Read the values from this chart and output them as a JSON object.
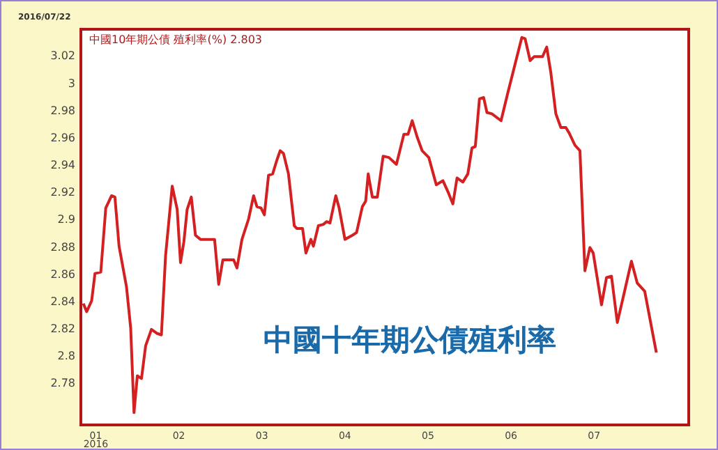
{
  "chart_data": {
    "type": "line",
    "title": "中國10年期公債 殖利率(%) 2.803",
    "annotations": [
      "2016/07/22",
      "2016",
      "中國十年期公債殖利率"
    ],
    "x": [
      0.85,
      0.89,
      0.95,
      0.99,
      1.06,
      1.12,
      1.19,
      1.23,
      1.28,
      1.37,
      1.42,
      1.46,
      1.5,
      1.55,
      1.6,
      1.67,
      1.74,
      1.79,
      1.84,
      1.92,
      1.98,
      2.02,
      2.06,
      2.1,
      2.15,
      2.2,
      2.26,
      2.43,
      2.48,
      2.53,
      2.66,
      2.7,
      2.76,
      2.84,
      2.9,
      2.94,
      2.99,
      3.03,
      3.08,
      3.13,
      3.18,
      3.22,
      3.26,
      3.32,
      3.39,
      3.42,
      3.49,
      3.53,
      3.59,
      3.62,
      3.68,
      3.74,
      3.78,
      3.82,
      3.89,
      3.93,
      4.0,
      4.09,
      4.14,
      4.21,
      4.25,
      4.28,
      4.33,
      4.39,
      4.46,
      4.53,
      4.62,
      4.71,
      4.76,
      4.81,
      4.87,
      4.93,
      5.01,
      5.1,
      5.18,
      5.24,
      5.3,
      5.35,
      5.42,
      5.48,
      5.53,
      5.57,
      5.62,
      5.67,
      5.71,
      5.77,
      5.88,
      5.96,
      6.13,
      6.17,
      6.23,
      6.28,
      6.38,
      6.43,
      6.48,
      6.54,
      6.6,
      6.66,
      6.7,
      6.77,
      6.83,
      6.89,
      6.95,
      6.99,
      7.09,
      7.15,
      7.21,
      7.28,
      7.36,
      7.45,
      7.52,
      7.61,
      7.75
    ],
    "series": [
      {
        "color": "#d42020",
        "values": [
          2.839,
          2.833,
          2.841,
          2.861,
          2.862,
          2.909,
          2.918,
          2.917,
          2.881,
          2.851,
          2.821,
          2.759,
          2.786,
          2.784,
          2.808,
          2.82,
          2.817,
          2.816,
          2.874,
          2.925,
          2.908,
          2.869,
          2.884,
          2.908,
          2.917,
          2.889,
          2.886,
          2.886,
          2.853,
          2.871,
          2.871,
          2.865,
          2.886,
          2.901,
          2.918,
          2.91,
          2.909,
          2.904,
          2.933,
          2.934,
          2.944,
          2.951,
          2.949,
          2.934,
          2.896,
          2.894,
          2.894,
          2.876,
          2.886,
          2.881,
          2.896,
          2.897,
          2.899,
          2.898,
          2.918,
          2.909,
          2.886,
          2.889,
          2.891,
          2.91,
          2.914,
          2.934,
          2.917,
          2.917,
          2.947,
          2.946,
          2.941,
          2.963,
          2.963,
          2.973,
          2.961,
          2.951,
          2.946,
          2.926,
          2.929,
          2.921,
          2.912,
          2.931,
          2.928,
          2.934,
          2.953,
          2.954,
          2.989,
          2.99,
          2.979,
          2.978,
          2.973,
          2.993,
          3.034,
          3.033,
          3.017,
          3.02,
          3.02,
          3.027,
          3.008,
          2.978,
          2.968,
          2.968,
          2.964,
          2.955,
          2.951,
          2.863,
          2.88,
          2.876,
          2.838,
          2.858,
          2.859,
          2.825,
          2.846,
          2.87,
          2.854,
          2.848,
          2.803
        ]
      }
    ],
    "xlim": [
      0.82,
      8.14
    ],
    "xticks": [
      {
        "value": 1,
        "label": "01"
      },
      {
        "value": 2,
        "label": "02"
      },
      {
        "value": 3,
        "label": "03"
      },
      {
        "value": 4,
        "label": "04"
      },
      {
        "value": 5,
        "label": "05"
      },
      {
        "value": 6,
        "label": "06"
      },
      {
        "value": 7,
        "label": "07"
      }
    ],
    "ylim": [
      2.75,
      3.04
    ],
    "yticks": [
      {
        "value": 2.78,
        "label": "2.78"
      },
      {
        "value": 2.8,
        "label": "2.8"
      },
      {
        "value": 2.82,
        "label": "2.82"
      },
      {
        "value": 2.84,
        "label": "2.84"
      },
      {
        "value": 2.86,
        "label": "2.86"
      },
      {
        "value": 2.88,
        "label": "2.88"
      },
      {
        "value": 2.9,
        "label": "2.9"
      },
      {
        "value": 2.92,
        "label": "2.92"
      },
      {
        "value": 2.94,
        "label": "2.94"
      },
      {
        "value": 2.96,
        "label": "2.96"
      },
      {
        "value": 2.98,
        "label": "2.98"
      },
      {
        "value": 3,
        "label": "3"
      },
      {
        "value": 3.02,
        "label": "3.02"
      }
    ],
    "grid": false,
    "legend": false,
    "marker": "none",
    "line_style": "solid"
  }
}
